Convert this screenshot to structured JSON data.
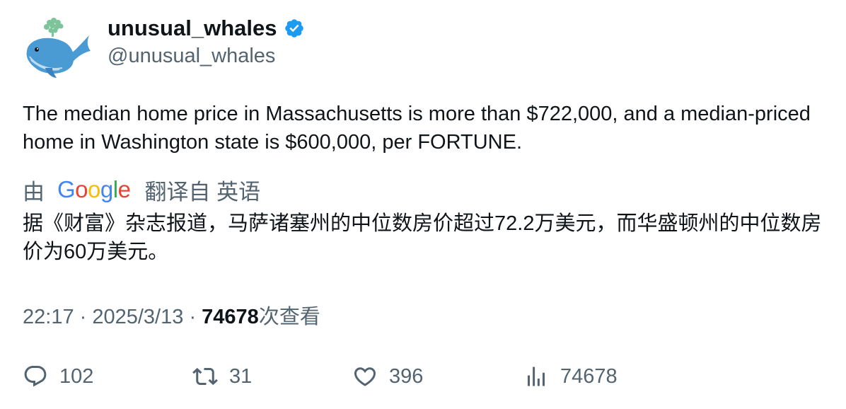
{
  "author": {
    "display_name": "unusual_whales",
    "handle": "@unusual_whales",
    "verified": true,
    "verified_color": "#1d9bf0"
  },
  "tweet": {
    "text": "The median home price in Massachusetts is more than $722,000, and a median-priced home in Washington state is $600,000, per FORTUNE.",
    "translation": {
      "by_label": "由",
      "provider": "Google",
      "source_label": "翻译自 英语",
      "text": "据《财富》杂志报道，马萨诸塞州的中位数房价超过72.2万美元，而华盛顿州的中位数房价为60万美元。"
    }
  },
  "meta": {
    "time": "22:17",
    "separator": "·",
    "date": "2025/3/13",
    "views": "74678",
    "views_label": "次查看"
  },
  "actions": {
    "replies": "102",
    "retweets": "31",
    "likes": "396",
    "views": "74678"
  },
  "icons": {
    "reply": "reply-icon",
    "retweet": "retweet-icon",
    "like": "heart-icon",
    "views": "analytics-icon",
    "verified": "verified-badge-icon"
  }
}
